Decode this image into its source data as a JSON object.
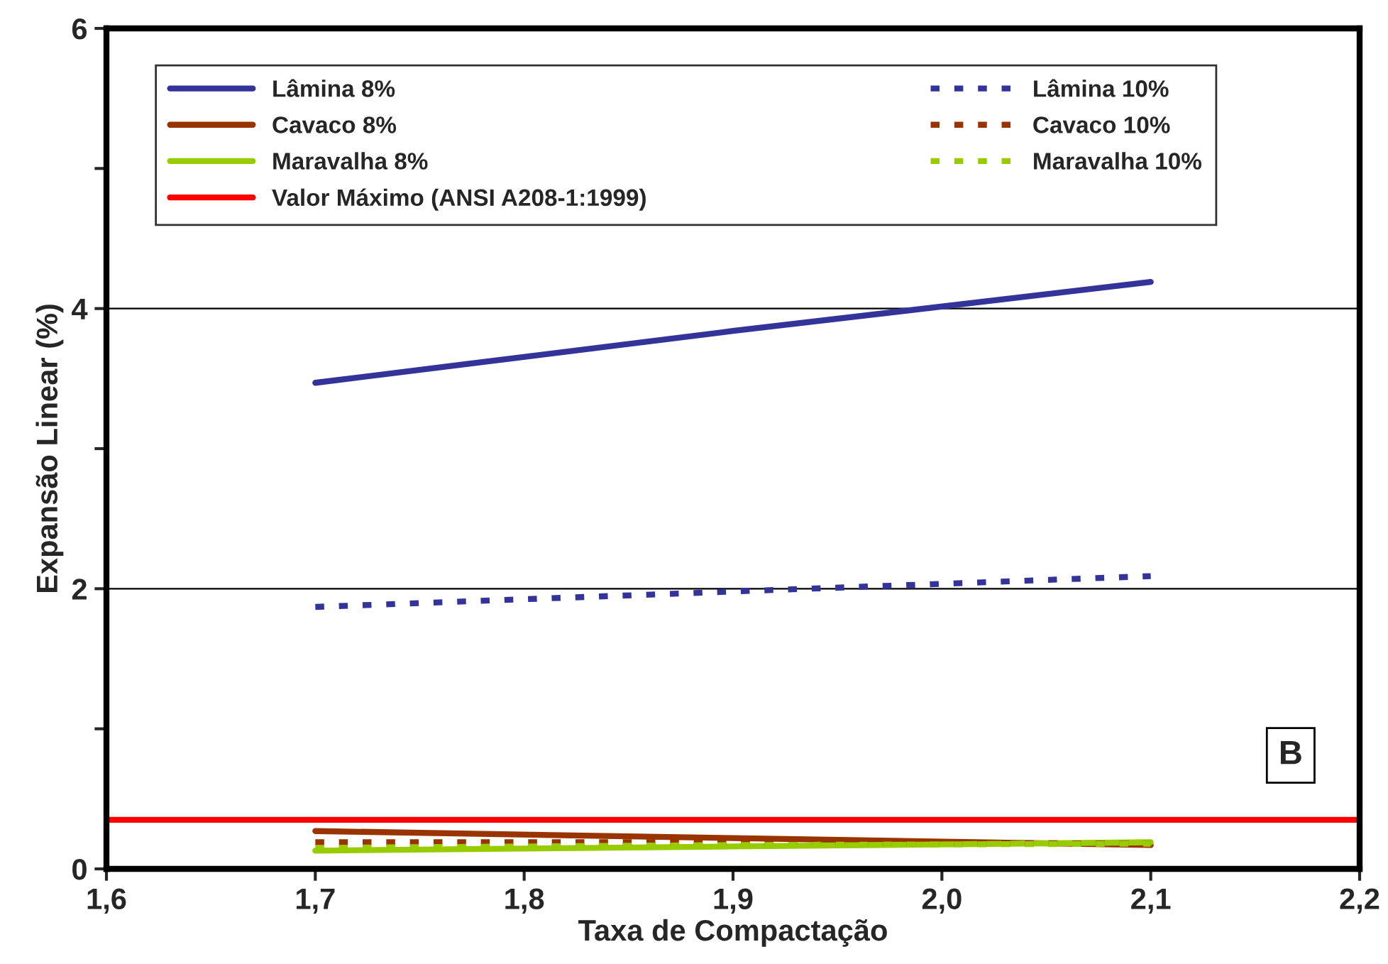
{
  "chart_data": {
    "type": "line",
    "xlabel": "Taxa de Compactação",
    "ylabel": "Expansão Linear (%)",
    "x": [
      1.7,
      1.9,
      2.1
    ],
    "series": [
      {
        "name": "Lâmina 8%",
        "color": "#333399",
        "values": [
          3.47,
          3.84,
          4.19
        ]
      },
      {
        "name": "Cavaco 8%",
        "color": "#993300",
        "values": [
          0.27,
          0.22,
          0.17
        ]
      },
      {
        "name": "Maravalha 8%",
        "color": "#99cc00",
        "values": [
          0.13,
          0.16,
          0.19
        ]
      },
      {
        "name": "Lâmina 10%",
        "color": "#333399",
        "values": [
          1.87,
          1.98,
          2.09
        ],
        "line_style": "dashed"
      },
      {
        "name": "Cavaco 10%",
        "color": "#993300",
        "values": [
          0.19,
          0.19,
          0.18
        ],
        "line_style": "dashed"
      },
      {
        "name": "Maravalha 10%",
        "color": "#99cc00",
        "values": [
          0.15,
          0.17,
          0.18
        ],
        "line_style": "dashed"
      },
      {
        "name": "Valor Máximo (ANSI A208-1:1999)",
        "color": "#ff0000",
        "x": [
          1.6,
          2.2
        ],
        "values": [
          0.35,
          0.35
        ]
      }
    ],
    "annotations": [
      "B"
    ],
    "xlim": [
      1.6,
      2.2
    ],
    "xticks": [
      {
        "value": 1.6,
        "label": "1,6"
      },
      {
        "value": 1.7,
        "label": "1,7"
      },
      {
        "value": 1.8,
        "label": "1,8"
      },
      {
        "value": 1.9,
        "label": "1,9"
      },
      {
        "value": 2.0,
        "label": "2,0"
      },
      {
        "value": 2.1,
        "label": "2,1"
      },
      {
        "value": 2.2,
        "label": "2,2"
      }
    ],
    "ylim": [
      0,
      6
    ],
    "yticks": [
      0,
      {
        "value": 1,
        "label": null
      },
      2,
      {
        "value": 3,
        "label": null
      },
      4,
      {
        "value": 5,
        "label": null
      },
      6
    ],
    "grid": "y",
    "legend": "top",
    "marker": "none"
  }
}
